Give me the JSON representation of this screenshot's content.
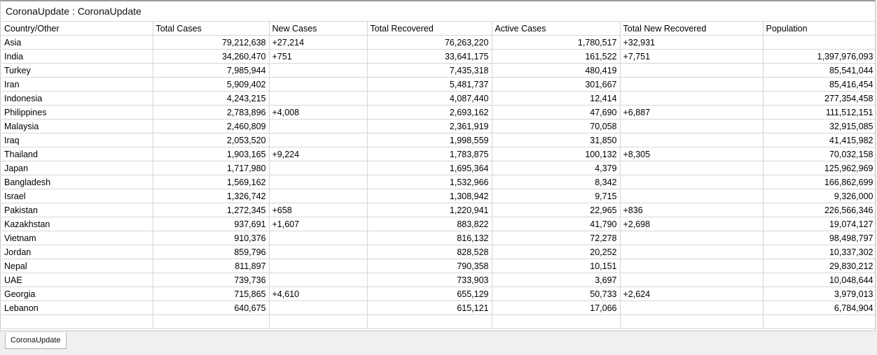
{
  "window": {
    "title": "CoronaUpdate : CoronaUpdate"
  },
  "table": {
    "columns": [
      "Country/Other",
      "Total Cases",
      "New Cases",
      "Total Recovered",
      "Active Cases",
      "Total New Recovered",
      "Population"
    ],
    "rows": [
      [
        "Asia",
        "79,212,638",
        "+27,214",
        "76,263,220",
        "1,780,517",
        "+32,931",
        ""
      ],
      [
        "India",
        "34,260,470",
        "+751",
        "33,641,175",
        "161,522",
        "+7,751",
        "1,397,976,093"
      ],
      [
        "Turkey",
        "7,985,944",
        "",
        "7,435,318",
        "480,419",
        "",
        "85,541,044"
      ],
      [
        "Iran",
        "5,909,402",
        "",
        "5,481,737",
        "301,667",
        "",
        "85,416,454"
      ],
      [
        "Indonesia",
        "4,243,215",
        "",
        "4,087,440",
        "12,414",
        "",
        "277,354,458"
      ],
      [
        "Philippines",
        "2,783,896",
        "+4,008",
        "2,693,162",
        "47,690",
        "+6,887",
        "111,512,151"
      ],
      [
        "Malaysia",
        "2,460,809",
        "",
        "2,361,919",
        "70,058",
        "",
        "32,915,085"
      ],
      [
        "Iraq",
        "2,053,520",
        "",
        "1,998,559",
        "31,850",
        "",
        "41,415,982"
      ],
      [
        "Thailand",
        "1,903,165",
        "+9,224",
        "1,783,875",
        "100,132",
        "+8,305",
        "70,032,158"
      ],
      [
        "Japan",
        "1,717,980",
        "",
        "1,695,364",
        "4,379",
        "",
        "125,962,969"
      ],
      [
        "Bangladesh",
        "1,569,162",
        "",
        "1,532,966",
        "8,342",
        "",
        "166,862,699"
      ],
      [
        "Israel",
        "1,326,742",
        "",
        "1,308,942",
        "9,715",
        "",
        "9,326,000"
      ],
      [
        "Pakistan",
        "1,272,345",
        "+658",
        "1,220,941",
        "22,965",
        "+836",
        "226,566,346"
      ],
      [
        "Kazakhstan",
        "937,691",
        "+1,607",
        "883,822",
        "41,790",
        "+2,698",
        "19,074,127"
      ],
      [
        "Vietnam",
        "910,376",
        "",
        "816,132",
        "72,278",
        "",
        "98,498,797"
      ],
      [
        "Jordan",
        "859,796",
        "",
        "828,528",
        "20,252",
        "",
        "10,337,302"
      ],
      [
        "Nepal",
        "811,897",
        "",
        "790,358",
        "10,151",
        "",
        "29,830,212"
      ],
      [
        "UAE",
        "739,736",
        "",
        "733,903",
        "3,697",
        "",
        "10,048,644"
      ],
      [
        "Georgia",
        "715,865",
        "+4,610",
        "655,129",
        "50,733",
        "+2,624",
        "3,979,013"
      ],
      [
        "Lebanon",
        "640,675",
        "",
        "615,121",
        "17,066",
        "",
        "6,784,904"
      ],
      [
        "",
        "",
        "",
        "",
        "",
        "",
        ""
      ]
    ]
  },
  "sheet_tabs": [
    {
      "label": "CoronaUpdate",
      "active": true
    }
  ]
}
